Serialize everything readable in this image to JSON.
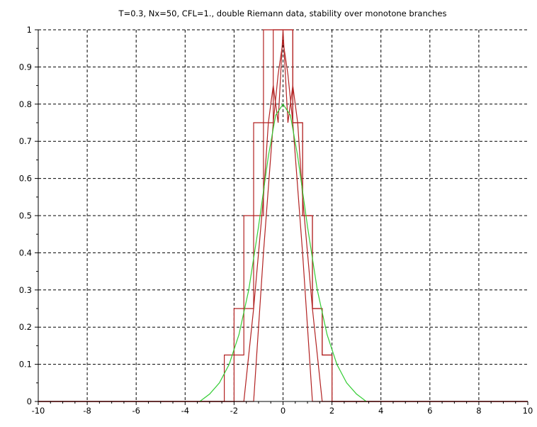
{
  "colors": {
    "branch_line": "#b22222",
    "reference_line": "#33cc33",
    "axis": "#000000",
    "grid": "#000000"
  },
  "chart_data": {
    "type": "line",
    "title": "T=0.3, Nx=50, CFL=1., double Riemann data, stability over monotone branches",
    "xlabel": "",
    "ylabel": "",
    "xlim": [
      -10,
      10
    ],
    "ylim": [
      0,
      1
    ],
    "grid": true,
    "grid_style": "dashed",
    "legend": "none",
    "x_ticks": [
      -10,
      -8,
      -6,
      -4,
      -2,
      0,
      2,
      4,
      6,
      8,
      10
    ],
    "x_tick_labels": [
      "-10",
      "-8",
      "-6",
      "-4",
      "-2",
      "0",
      "2",
      "4",
      "6",
      "8",
      "10"
    ],
    "y_ticks": [
      0,
      0.1,
      0.2,
      0.3,
      0.4,
      0.5,
      0.6,
      0.7,
      0.8,
      0.9,
      1
    ],
    "y_tick_labels": [
      "0",
      "0.1",
      "0.2",
      "0.3",
      "0.4",
      "0.5",
      "0.6",
      "0.7",
      "0.8",
      "0.9",
      "1"
    ],
    "series": [
      {
        "color": "#b22222",
        "step": true,
        "x": [
          -10,
          -2.4,
          -2.4,
          -2.0,
          -2.0,
          -1.6,
          -1.6,
          -1.2,
          -1.2,
          -0.8,
          -0.8,
          -0.4,
          -0.4,
          0.4,
          0.4,
          0.8,
          0.8,
          1.2,
          1.2,
          1.6,
          1.6,
          2.0,
          2.0,
          2.4,
          2.4,
          10
        ],
        "y": [
          0,
          0,
          0.125,
          0.125,
          0.25,
          0.25,
          0.5,
          0.5,
          0.75,
          0.75,
          1.0,
          1.0,
          1.0,
          1.0,
          0.75,
          0.75,
          0.5,
          0.5,
          0.25,
          0.25,
          0.125,
          0.125,
          0.0,
          0.0,
          0,
          0
        ]
      },
      {
        "color": "#b22222",
        "step": true,
        "x": [
          -10,
          -2.0,
          -2.0,
          -1.6,
          -1.6,
          -1.2,
          -1.2,
          -0.8,
          -0.8,
          -0.4,
          -0.4,
          0.4,
          0.4,
          0.8,
          0.8,
          1.2,
          1.2,
          1.6,
          1.6,
          2.0,
          2.0,
          10
        ],
        "y": [
          0,
          0,
          0.125,
          0.125,
          0.25,
          0.25,
          0.5,
          0.5,
          0.75,
          0.75,
          1.0,
          1.0,
          0.75,
          0.75,
          0.5,
          0.5,
          0.25,
          0.25,
          0.125,
          0.125,
          0,
          0
        ]
      },
      {
        "color": "#b22222",
        "step": false,
        "x": [
          -10,
          -1.6,
          -1.2,
          -0.8,
          -0.6,
          -0.4,
          -0.2,
          0.0,
          0.2,
          0.4,
          0.6,
          0.8,
          1.2,
          1.6,
          10
        ],
        "y": [
          0,
          0,
          0.25,
          0.55,
          0.75,
          0.85,
          0.75,
          1.0,
          0.75,
          0.85,
          0.75,
          0.55,
          0.25,
          0,
          0
        ]
      },
      {
        "color": "#b22222",
        "step": false,
        "x": [
          -10,
          -1.2,
          -0.8,
          -0.4,
          -0.2,
          0.0,
          0.2,
          0.4,
          0.8,
          1.2,
          10
        ],
        "y": [
          0,
          0,
          0.4,
          0.75,
          0.88,
          0.97,
          0.88,
          0.75,
          0.4,
          0,
          0
        ]
      },
      {
        "color": "#33cc33",
        "step": false,
        "x": [
          -3.4,
          -3.0,
          -2.6,
          -2.2,
          -1.8,
          -1.4,
          -1.0,
          -0.6,
          -0.3,
          0.0,
          0.3,
          0.6,
          1.0,
          1.4,
          1.8,
          2.2,
          2.6,
          3.0,
          3.4
        ],
        "y": [
          0.0,
          0.02,
          0.05,
          0.1,
          0.18,
          0.3,
          0.47,
          0.66,
          0.77,
          0.8,
          0.77,
          0.66,
          0.47,
          0.3,
          0.18,
          0.1,
          0.05,
          0.02,
          0.0
        ]
      }
    ]
  }
}
